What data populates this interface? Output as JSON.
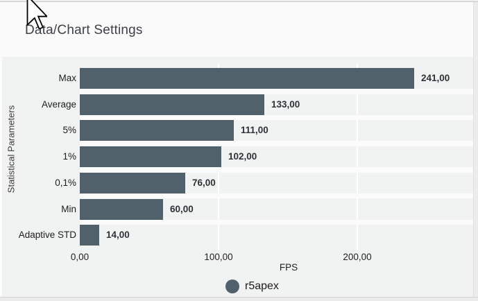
{
  "header": {
    "title": "Data/Chart Settings"
  },
  "chart_data": {
    "type": "bar",
    "orientation": "horizontal",
    "categories": [
      "Max",
      "Average",
      "5%",
      "1%",
      "0,1%",
      "Min",
      "Adaptive STD"
    ],
    "values": [
      241,
      133,
      111,
      102,
      76,
      60,
      14
    ],
    "value_labels": [
      "241,00",
      "133,00",
      "111,00",
      "102,00",
      "76,00",
      "60,00",
      "14,00"
    ],
    "xlabel": "FPS",
    "ylabel": "Statistical Parameters",
    "xlim": [
      0,
      283.5
    ],
    "xticks": [
      {
        "value": 0,
        "label": "0,00"
      },
      {
        "value": 100,
        "label": "100,00"
      },
      {
        "value": 200,
        "label": "200,00"
      }
    ],
    "grid": true,
    "legend": {
      "position": "bottom",
      "entries": [
        {
          "label": "r5apex",
          "marker": "circle",
          "color": "#51616c"
        }
      ]
    },
    "bar_color": "#51616c",
    "value_label_color": "#2e3136",
    "plot_background": "#f1f2f2"
  }
}
